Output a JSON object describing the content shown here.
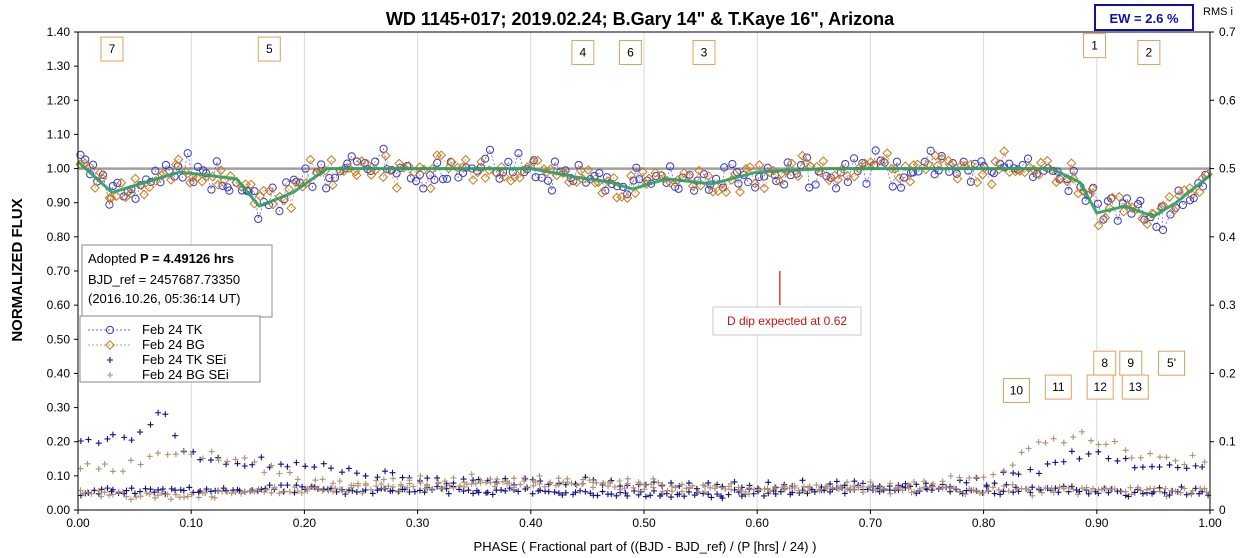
{
  "chart_data": {
    "type": "scatter",
    "title": "WD 1145+017; 2019.02.24; B.Gary 14\" & T.Kaye 16\", Arizona",
    "xlabel": "PHASE ( Fractional part of ((BJD - BJD_ref) / (P [hrs] / 24) )",
    "ylabel": "NORMALIZED FLUX",
    "y2label": "RMS i",
    "xlim": [
      0.0,
      1.0
    ],
    "ylim": [
      0.0,
      1.4
    ],
    "y2lim": [
      0.0,
      0.7
    ],
    "x_ticks": [
      "0.00",
      "0.10",
      "0.20",
      "0.30",
      "0.40",
      "0.50",
      "0.60",
      "0.70",
      "0.80",
      "0.90",
      "1.00"
    ],
    "y_ticks": [
      "0.00",
      "0.10",
      "0.20",
      "0.30",
      "0.40",
      "0.50",
      "0.60",
      "0.70",
      "0.80",
      "0.90",
      "1.00",
      "1.10",
      "1.20",
      "1.30",
      "1.40"
    ],
    "y2_ticks": [
      "0",
      "0.1",
      "0.2",
      "0.3",
      "0.4",
      "0.5",
      "0.6",
      "0.7"
    ],
    "grid": "vertical",
    "legend_position": "left-middle",
    "ew_label": "EW =  2.6 %",
    "info_box": {
      "line1_prefix": "Adopted ",
      "line1_bold": "P = 4.49126 hrs",
      "line2": "BJD_ref = 2457687.73350",
      "line3": "(2016.10.26, 05:36:14 UT)"
    },
    "annotation": {
      "text": "D dip expected at 0.62",
      "x": 0.62,
      "y_top": 0.7,
      "y_bottom": 0.6
    },
    "reference_line": {
      "y": 1.0,
      "color": "#a0a0a0"
    },
    "dip_markers": [
      {
        "label": "7",
        "x": 0.03,
        "y": 1.35
      },
      {
        "label": "5",
        "x": 0.169,
        "y": 1.35
      },
      {
        "label": "4",
        "x": 0.446,
        "y": 1.34
      },
      {
        "label": "6",
        "x": 0.488,
        "y": 1.34
      },
      {
        "label": "3",
        "x": 0.553,
        "y": 1.34
      },
      {
        "label": "1",
        "x": 0.898,
        "y": 1.36
      },
      {
        "label": "2",
        "x": 0.946,
        "y": 1.34
      },
      {
        "label": "8",
        "x": 0.907,
        "y": 0.43
      },
      {
        "label": "9",
        "x": 0.93,
        "y": 0.43
      },
      {
        "label": "5'",
        "x": 0.966,
        "y": 0.43
      },
      {
        "label": "10",
        "x": 0.829,
        "y": 0.35
      },
      {
        "label": "11",
        "x": 0.866,
        "y": 0.36
      },
      {
        "label": "12",
        "x": 0.903,
        "y": 0.36
      },
      {
        "label": "13",
        "x": 0.934,
        "y": 0.36
      }
    ],
    "series": [
      {
        "name": "Feb 24 TK",
        "marker": "circle",
        "color": "#3838c8",
        "model": [
          [
            0,
            1.02
          ],
          [
            0.03,
            0.93
          ],
          [
            0.06,
            0.96
          ],
          [
            0.09,
            0.99
          ],
          [
            0.14,
            0.97
          ],
          [
            0.16,
            0.89
          ],
          [
            0.19,
            0.93
          ],
          [
            0.22,
            1.0
          ],
          [
            0.4,
            1.0
          ],
          [
            0.44,
            0.975
          ],
          [
            0.47,
            0.96
          ],
          [
            0.49,
            0.94
          ],
          [
            0.52,
            0.97
          ],
          [
            0.56,
            0.955
          ],
          [
            0.6,
            0.99
          ],
          [
            0.66,
            1.0
          ],
          [
            0.86,
            1.0
          ],
          [
            0.885,
            0.96
          ],
          [
            0.9,
            0.87
          ],
          [
            0.925,
            0.89
          ],
          [
            0.95,
            0.86
          ],
          [
            0.97,
            0.9
          ],
          [
            1.0,
            0.98
          ]
        ],
        "scatter": 0.05
      },
      {
        "name": "Feb 24 BG",
        "marker": "diamond",
        "color": "#c8781c",
        "model": [
          [
            0,
            1.02
          ],
          [
            0.03,
            0.93
          ],
          [
            0.06,
            0.96
          ],
          [
            0.09,
            0.99
          ],
          [
            0.14,
            0.97
          ],
          [
            0.16,
            0.9
          ],
          [
            0.19,
            0.93
          ],
          [
            0.22,
            1.0
          ],
          [
            0.4,
            1.0
          ],
          [
            0.44,
            0.975
          ],
          [
            0.47,
            0.96
          ],
          [
            0.49,
            0.94
          ],
          [
            0.52,
            0.97
          ],
          [
            0.56,
            0.955
          ],
          [
            0.6,
            0.99
          ],
          [
            0.66,
            1.0
          ],
          [
            0.86,
            1.0
          ],
          [
            0.885,
            0.96
          ],
          [
            0.9,
            0.87
          ],
          [
            0.925,
            0.89
          ],
          [
            0.95,
            0.86
          ],
          [
            0.97,
            0.9
          ],
          [
            1.0,
            0.98
          ]
        ],
        "scatter": 0.045
      },
      {
        "name": "Feb 24 TK SEi",
        "marker": "plus",
        "color": "#101080",
        "model": [
          [
            0,
            0.048
          ],
          [
            0.06,
            0.055
          ],
          [
            0.2,
            0.06
          ],
          [
            0.4,
            0.055
          ],
          [
            0.55,
            0.045
          ],
          [
            0.7,
            0.06
          ],
          [
            0.85,
            0.06
          ],
          [
            1.0,
            0.05
          ]
        ],
        "upper": [
          [
            0,
            0.2
          ],
          [
            0.04,
            0.21
          ],
          [
            0.065,
            0.25
          ],
          [
            0.075,
            0.3
          ],
          [
            0.09,
            0.17
          ],
          [
            0.13,
            0.13
          ],
          [
            0.2,
            0.13
          ],
          [
            0.27,
            0.1
          ],
          [
            0.33,
            0.09
          ],
          [
            0.4,
            0.085
          ],
          [
            0.5,
            0.07
          ],
          [
            0.6,
            0.07
          ],
          [
            0.7,
            0.075
          ],
          [
            0.8,
            0.085
          ],
          [
            0.86,
            0.13
          ],
          [
            0.89,
            0.17
          ],
          [
            0.92,
            0.14
          ],
          [
            0.97,
            0.13
          ],
          [
            1.0,
            0.13
          ]
        ],
        "scatter": 0.012
      },
      {
        "name": "Feb 24 BG SEi",
        "marker": "plus",
        "color": "#b09070",
        "model": [
          [
            0,
            0.05
          ],
          [
            0.1,
            0.045
          ],
          [
            0.3,
            0.07
          ],
          [
            0.45,
            0.08
          ],
          [
            0.55,
            0.06
          ],
          [
            0.7,
            0.065
          ],
          [
            0.85,
            0.06
          ],
          [
            1.0,
            0.055
          ]
        ],
        "upper": [
          [
            0,
            0.13
          ],
          [
            0.04,
            0.12
          ],
          [
            0.07,
            0.16
          ],
          [
            0.1,
            0.16
          ],
          [
            0.15,
            0.15
          ],
          [
            0.2,
            0.08
          ],
          [
            0.4,
            0.09
          ],
          [
            0.6,
            0.06
          ],
          [
            0.8,
            0.09
          ],
          [
            0.86,
            0.2
          ],
          [
            0.89,
            0.21
          ],
          [
            0.92,
            0.18
          ],
          [
            0.97,
            0.15
          ],
          [
            1.0,
            0.15
          ]
        ],
        "scatter": 0.014
      },
      {
        "name": "",
        "marker": "line",
        "color": "#2aa060",
        "model_fit": true
      }
    ]
  }
}
